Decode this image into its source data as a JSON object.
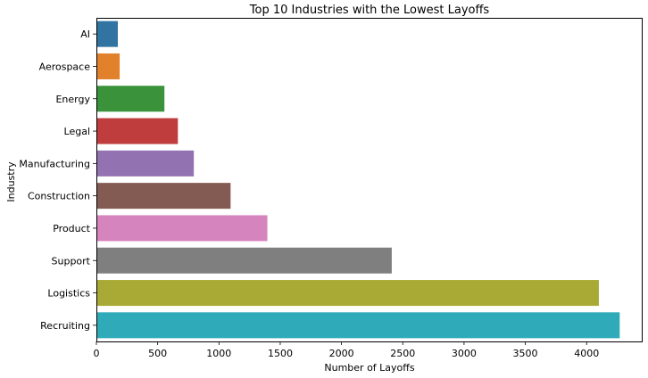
{
  "chart_data": {
    "type": "bar",
    "orientation": "horizontal",
    "title": "Top 10 Industries with the Lowest Layoffs",
    "xlabel": "Number of Layoffs",
    "ylabel": "Industry",
    "categories": [
      "AI",
      "Aerospace",
      "Energy",
      "Legal",
      "Manufacturing",
      "Construction",
      "Product",
      "Support",
      "Logistics",
      "Recruiting"
    ],
    "values": [
      175,
      190,
      555,
      665,
      795,
      1095,
      1395,
      2410,
      4100,
      4270
    ],
    "colors": [
      "#3274a1",
      "#e1812c",
      "#3a923a",
      "#c03d3e",
      "#9372b2",
      "#845b53",
      "#d684bd",
      "#7f7f7f",
      "#a9aa35",
      "#2eaab8"
    ],
    "xlim": [
      0,
      4450
    ],
    "xticks": [
      0,
      500,
      1000,
      1500,
      2000,
      2500,
      3000,
      3500,
      4000
    ],
    "grid": false,
    "legend": "none"
  }
}
